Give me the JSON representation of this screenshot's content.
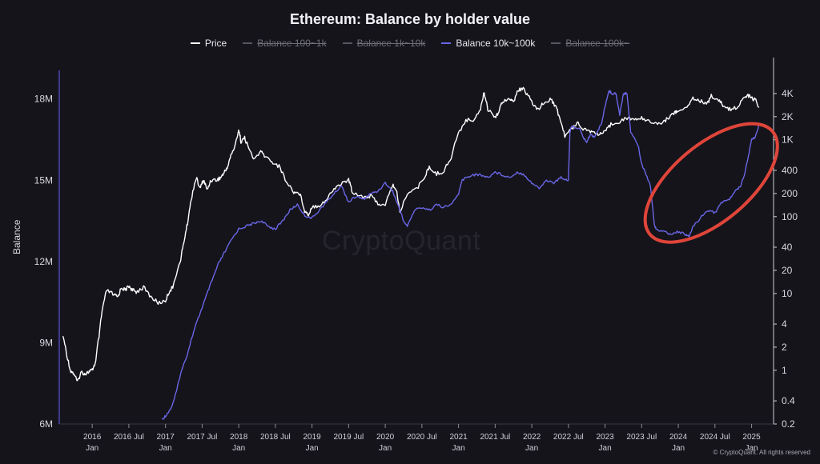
{
  "chart_data": {
    "type": "line",
    "title": "Ethereum: Balance by holder value",
    "ylabel": "Balance",
    "ylim": [
      6000000,
      18700000
    ],
    "y2_scale": "log",
    "y2lim": [
      0.2,
      6000
    ],
    "y_ticks": [
      {
        "value": 6000000,
        "label": "6M"
      },
      {
        "value": 9000000,
        "label": "9M"
      },
      {
        "value": 12000000,
        "label": "12M"
      },
      {
        "value": 15000000,
        "label": "15M"
      },
      {
        "value": 18000000,
        "label": "18M"
      }
    ],
    "y2_ticks": [
      {
        "value": 0.2,
        "label": "0.2"
      },
      {
        "value": 0.4,
        "label": "0.4"
      },
      {
        "value": 1,
        "label": "1"
      },
      {
        "value": 2,
        "label": "2"
      },
      {
        "value": 4,
        "label": "4"
      },
      {
        "value": 10,
        "label": "10"
      },
      {
        "value": 20,
        "label": "20"
      },
      {
        "value": 40,
        "label": "40"
      },
      {
        "value": 100,
        "label": "100"
      },
      {
        "value": 200,
        "label": "200"
      },
      {
        "value": 400,
        "label": "400"
      },
      {
        "value": 1000,
        "label": "1K"
      },
      {
        "value": 2000,
        "label": "2K"
      },
      {
        "value": 4000,
        "label": "4K"
      }
    ],
    "x_range": [
      2015.55,
      2025.3
    ],
    "x_ticks": [
      {
        "t": 2016.0,
        "label": "2016",
        "sub": "Jan"
      },
      {
        "t": 2016.5,
        "label": "2016 Jul",
        "sub": ""
      },
      {
        "t": 2017.0,
        "label": "2017",
        "sub": "Jan"
      },
      {
        "t": 2017.5,
        "label": "2017 Jul",
        "sub": ""
      },
      {
        "t": 2018.0,
        "label": "2018",
        "sub": "Jan"
      },
      {
        "t": 2018.5,
        "label": "2018 Jul",
        "sub": ""
      },
      {
        "t": 2019.0,
        "label": "2019",
        "sub": "Jan"
      },
      {
        "t": 2019.5,
        "label": "2019 Jul",
        "sub": ""
      },
      {
        "t": 2020.0,
        "label": "2020",
        "sub": "Jan"
      },
      {
        "t": 2020.5,
        "label": "2020 Jul",
        "sub": ""
      },
      {
        "t": 2021.0,
        "label": "2021",
        "sub": "Jan"
      },
      {
        "t": 2021.5,
        "label": "2021 Jul",
        "sub": ""
      },
      {
        "t": 2022.0,
        "label": "2022",
        "sub": "Jan"
      },
      {
        "t": 2022.5,
        "label": "2022 Jul",
        "sub": ""
      },
      {
        "t": 2023.0,
        "label": "2023",
        "sub": "Jan"
      },
      {
        "t": 2023.5,
        "label": "2023 Jul",
        "sub": ""
      },
      {
        "t": 2024.0,
        "label": "2024",
        "sub": "Jan"
      },
      {
        "t": 2024.5,
        "label": "2024 Jul",
        "sub": ""
      },
      {
        "t": 2025.0,
        "label": "2025",
        "sub": "Jan"
      }
    ],
    "legend": [
      {
        "name": "Price",
        "color": "#ffffff",
        "active": true
      },
      {
        "name": "Balance 100~1k",
        "color": "#8a8a94",
        "active": false
      },
      {
        "name": "Balance 1k~10k",
        "color": "#8a8a94",
        "active": false
      },
      {
        "name": "Balance 10k~100k",
        "color": "#6a66e6",
        "active": true
      },
      {
        "name": "Balance 100k~",
        "color": "#8a8a94",
        "active": false
      }
    ],
    "series": [
      {
        "name": "Price",
        "axis": "right",
        "color": "#ffffff",
        "points": [
          [
            2015.6,
            2.8
          ],
          [
            2015.65,
            1.6
          ],
          [
            2015.7,
            1.0
          ],
          [
            2015.75,
            0.9
          ],
          [
            2015.8,
            0.7
          ],
          [
            2015.85,
            0.95
          ],
          [
            2015.9,
            0.9
          ],
          [
            2015.95,
            0.95
          ],
          [
            2016.0,
            1.0
          ],
          [
            2016.05,
            1.3
          ],
          [
            2016.1,
            3.0
          ],
          [
            2016.15,
            7.0
          ],
          [
            2016.2,
            11.0
          ],
          [
            2016.3,
            9.5
          ],
          [
            2016.35,
            9.0
          ],
          [
            2016.4,
            12.0
          ],
          [
            2016.45,
            11.0
          ],
          [
            2016.5,
            12.5
          ],
          [
            2016.55,
            11.0
          ],
          [
            2016.6,
            10.5
          ],
          [
            2016.7,
            12.0
          ],
          [
            2016.8,
            9.0
          ],
          [
            2016.9,
            7.5
          ],
          [
            2017.0,
            8.0
          ],
          [
            2017.05,
            10.5
          ],
          [
            2017.1,
            12.0
          ],
          [
            2017.2,
            25.0
          ],
          [
            2017.25,
            45.0
          ],
          [
            2017.3,
            80.0
          ],
          [
            2017.35,
            160.0
          ],
          [
            2017.42,
            320.0
          ],
          [
            2017.47,
            230.0
          ],
          [
            2017.52,
            300.0
          ],
          [
            2017.57,
            220.0
          ],
          [
            2017.62,
            300.0
          ],
          [
            2017.7,
            300.0
          ],
          [
            2017.75,
            320.0
          ],
          [
            2017.8,
            370.0
          ],
          [
            2017.85,
            450.0
          ],
          [
            2017.9,
            650.0
          ],
          [
            2017.95,
            820.0
          ],
          [
            2018.0,
            1350.0
          ],
          [
            2018.03,
            950.0
          ],
          [
            2018.08,
            1050.0
          ],
          [
            2018.12,
            850.0
          ],
          [
            2018.2,
            550.0
          ],
          [
            2018.3,
            700.0
          ],
          [
            2018.35,
            620.0
          ],
          [
            2018.45,
            520.0
          ],
          [
            2018.55,
            450.0
          ],
          [
            2018.65,
            280.0
          ],
          [
            2018.75,
            210.0
          ],
          [
            2018.83,
            200.0
          ],
          [
            2018.9,
            120.0
          ],
          [
            2018.95,
            105.0
          ],
          [
            2019.0,
            135.0
          ],
          [
            2019.1,
            140.0
          ],
          [
            2019.2,
            165.0
          ],
          [
            2019.3,
            230.0
          ],
          [
            2019.4,
            270.0
          ],
          [
            2019.5,
            300.0
          ],
          [
            2019.55,
            210.0
          ],
          [
            2019.7,
            180.0
          ],
          [
            2019.8,
            185.0
          ],
          [
            2019.9,
            150.0
          ],
          [
            2020.0,
            135.0
          ],
          [
            2020.1,
            260.0
          ],
          [
            2020.15,
            220.0
          ],
          [
            2020.2,
            110.0
          ],
          [
            2020.3,
            200.0
          ],
          [
            2020.45,
            240.0
          ],
          [
            2020.55,
            350.0
          ],
          [
            2020.6,
            430.0
          ],
          [
            2020.7,
            360.0
          ],
          [
            2020.8,
            390.0
          ],
          [
            2020.9,
            580.0
          ],
          [
            2021.0,
            1200.0
          ],
          [
            2021.1,
            1800.0
          ],
          [
            2021.2,
            1800.0
          ],
          [
            2021.3,
            2500.0
          ],
          [
            2021.35,
            4100.0
          ],
          [
            2021.4,
            2500.0
          ],
          [
            2021.5,
            2000.0
          ],
          [
            2021.55,
            2300.0
          ],
          [
            2021.6,
            3200.0
          ],
          [
            2021.7,
            3500.0
          ],
          [
            2021.75,
            3000.0
          ],
          [
            2021.8,
            4200.0
          ],
          [
            2021.87,
            4700.0
          ],
          [
            2021.95,
            3800.0
          ],
          [
            2022.0,
            3000.0
          ],
          [
            2022.08,
            2500.0
          ],
          [
            2022.15,
            2900.0
          ],
          [
            2022.25,
            3400.0
          ],
          [
            2022.32,
            2800.0
          ],
          [
            2022.38,
            1900.0
          ],
          [
            2022.45,
            1100.0
          ],
          [
            2022.55,
            1400.0
          ],
          [
            2022.62,
            1700.0
          ],
          [
            2022.7,
            1400.0
          ],
          [
            2022.8,
            1300.0
          ],
          [
            2022.88,
            1200.0
          ],
          [
            2022.95,
            1200.0
          ],
          [
            2023.0,
            1250.0
          ],
          [
            2023.08,
            1600.0
          ],
          [
            2023.2,
            1750.0
          ],
          [
            2023.3,
            1900.0
          ],
          [
            2023.4,
            1850.0
          ],
          [
            2023.5,
            1900.0
          ],
          [
            2023.6,
            1800.0
          ],
          [
            2023.7,
            1600.0
          ],
          [
            2023.8,
            1700.0
          ],
          [
            2023.88,
            2000.0
          ],
          [
            2023.95,
            2300.0
          ],
          [
            2024.0,
            2300.0
          ],
          [
            2024.1,
            2600.0
          ],
          [
            2024.2,
            3500.0
          ],
          [
            2024.3,
            3200.0
          ],
          [
            2024.4,
            3000.0
          ],
          [
            2024.45,
            3700.0
          ],
          [
            2024.55,
            3300.0
          ],
          [
            2024.62,
            2700.0
          ],
          [
            2024.7,
            2500.0
          ],
          [
            2024.8,
            2600.0
          ],
          [
            2024.88,
            3400.0
          ],
          [
            2024.95,
            3800.0
          ],
          [
            2025.0,
            3500.0
          ],
          [
            2025.05,
            3300.0
          ],
          [
            2025.1,
            2700.0
          ]
        ]
      },
      {
        "name": "Balance 10k~100k",
        "axis": "left",
        "color": "#6a66e6",
        "points": [
          [
            2016.95,
            6150000
          ],
          [
            2017.0,
            6300000
          ],
          [
            2017.08,
            6600000
          ],
          [
            2017.15,
            7200000
          ],
          [
            2017.2,
            7800000
          ],
          [
            2017.3,
            8600000
          ],
          [
            2017.35,
            9100000
          ],
          [
            2017.42,
            9700000
          ],
          [
            2017.5,
            10300000
          ],
          [
            2017.58,
            10900000
          ],
          [
            2017.65,
            11400000
          ],
          [
            2017.72,
            11900000
          ],
          [
            2017.8,
            12300000
          ],
          [
            2017.9,
            12800000
          ],
          [
            2018.0,
            13200000
          ],
          [
            2018.1,
            13300000
          ],
          [
            2018.2,
            13400000
          ],
          [
            2018.3,
            13500000
          ],
          [
            2018.4,
            13300000
          ],
          [
            2018.5,
            13200000
          ],
          [
            2018.6,
            13500000
          ],
          [
            2018.7,
            13900000
          ],
          [
            2018.8,
            14100000
          ],
          [
            2018.9,
            13700000
          ],
          [
            2019.0,
            13600000
          ],
          [
            2019.1,
            13900000
          ],
          [
            2019.2,
            14200000
          ],
          [
            2019.3,
            14500000
          ],
          [
            2019.4,
            14800000
          ],
          [
            2019.5,
            14200000
          ],
          [
            2019.6,
            14400000
          ],
          [
            2019.7,
            14300000
          ],
          [
            2019.8,
            14500000
          ],
          [
            2019.9,
            14600000
          ],
          [
            2020.0,
            14900000
          ],
          [
            2020.1,
            14600000
          ],
          [
            2020.2,
            13900000
          ],
          [
            2020.25,
            13500000
          ],
          [
            2020.3,
            13300000
          ],
          [
            2020.4,
            13900000
          ],
          [
            2020.5,
            14000000
          ],
          [
            2020.6,
            13900000
          ],
          [
            2020.7,
            14100000
          ],
          [
            2020.8,
            14000000
          ],
          [
            2020.9,
            14100000
          ],
          [
            2021.0,
            14500000
          ],
          [
            2021.05,
            15000000
          ],
          [
            2021.1,
            15100000
          ],
          [
            2021.2,
            15200000
          ],
          [
            2021.3,
            15200000
          ],
          [
            2021.4,
            15100000
          ],
          [
            2021.5,
            15300000
          ],
          [
            2021.6,
            15200000
          ],
          [
            2021.7,
            15100000
          ],
          [
            2021.8,
            15300000
          ],
          [
            2021.9,
            15200000
          ],
          [
            2022.0,
            14900000
          ],
          [
            2022.1,
            14700000
          ],
          [
            2022.2,
            15000000
          ],
          [
            2022.3,
            14900000
          ],
          [
            2022.4,
            15100000
          ],
          [
            2022.5,
            15000000
          ],
          [
            2022.52,
            16800000
          ],
          [
            2022.55,
            17000000
          ],
          [
            2022.65,
            16900000
          ],
          [
            2022.7,
            16600000
          ],
          [
            2022.75,
            16400000
          ],
          [
            2022.8,
            16700000
          ],
          [
            2022.85,
            16600000
          ],
          [
            2022.9,
            16800000
          ],
          [
            2022.95,
            17100000
          ],
          [
            2023.0,
            17700000
          ],
          [
            2023.05,
            18300000
          ],
          [
            2023.1,
            18200000
          ],
          [
            2023.15,
            18200000
          ],
          [
            2023.2,
            17400000
          ],
          [
            2023.25,
            18200000
          ],
          [
            2023.3,
            18200000
          ],
          [
            2023.35,
            16800000
          ],
          [
            2023.45,
            16300000
          ],
          [
            2023.5,
            15600000
          ],
          [
            2023.55,
            15300000
          ],
          [
            2023.62,
            14800000
          ],
          [
            2023.67,
            13400000
          ],
          [
            2023.7,
            13200000
          ],
          [
            2023.8,
            13100000
          ],
          [
            2023.9,
            13000000
          ],
          [
            2024.0,
            13100000
          ],
          [
            2024.1,
            13000000
          ],
          [
            2024.15,
            12900000
          ],
          [
            2024.2,
            13300000
          ],
          [
            2024.3,
            13600000
          ],
          [
            2024.4,
            13900000
          ],
          [
            2024.5,
            13800000
          ],
          [
            2024.6,
            14200000
          ],
          [
            2024.7,
            14300000
          ],
          [
            2024.78,
            14600000
          ],
          [
            2024.85,
            14800000
          ],
          [
            2024.9,
            15200000
          ],
          [
            2024.95,
            15800000
          ],
          [
            2025.0,
            16500000
          ],
          [
            2025.05,
            16600000
          ],
          [
            2025.1,
            17000000
          ]
        ]
      }
    ],
    "annotation": {
      "type": "ellipse",
      "color": "#e0453a",
      "label": ""
    }
  },
  "watermark": "CryptoQuant",
  "credit": "© CryptoQuant. All rights reserved"
}
